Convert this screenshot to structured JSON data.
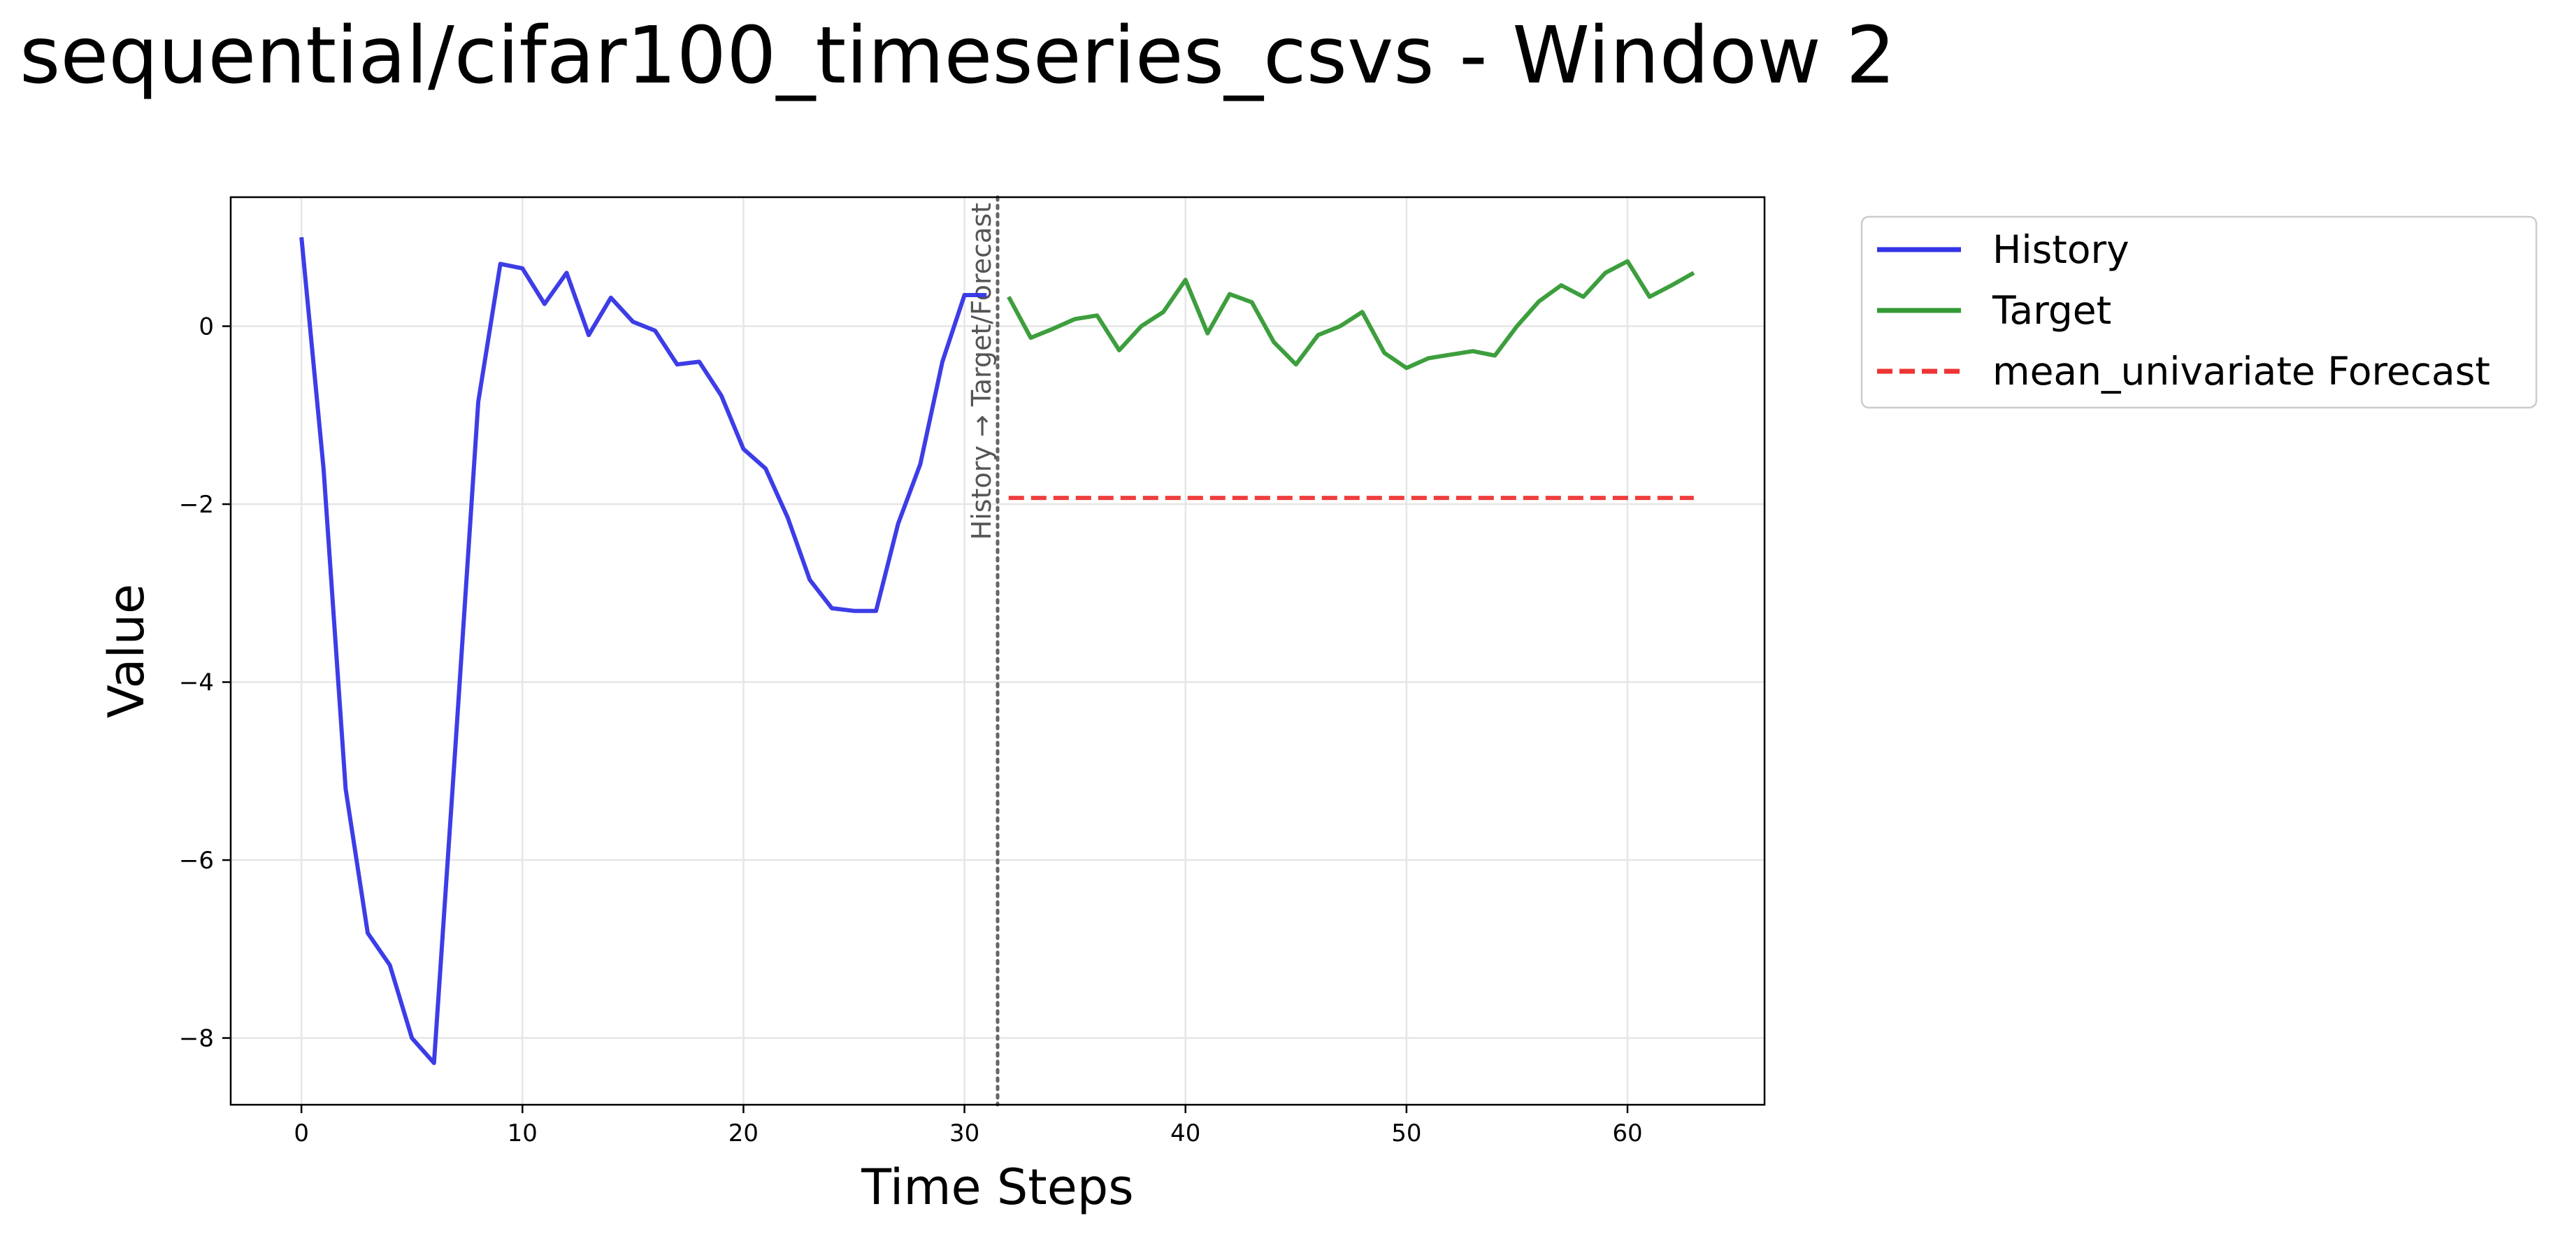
{
  "chart_data": {
    "type": "line",
    "title": "sequential/cifar100_timeseries_csvs - Window 2",
    "xlabel": "Time Steps",
    "ylabel": "Value",
    "xlim": [
      -3.2,
      66.2
    ],
    "ylim": [
      -8.75,
      1.45
    ],
    "xticks": [
      0,
      10,
      20,
      30,
      40,
      50,
      60
    ],
    "yticks": [
      -8,
      -6,
      -4,
      -2,
      0
    ],
    "ytick_labels": [
      "−8",
      "−6",
      "−4",
      "−2",
      "0"
    ],
    "grid": true,
    "legend_position": "outside-top-right",
    "divider": {
      "x": 31.5,
      "label": "History → Target/Forecast",
      "color": "#666666"
    },
    "series": [
      {
        "name": "History",
        "style": "solid",
        "color": "#3333e6",
        "x": [
          0,
          1,
          2,
          3,
          4,
          5,
          6,
          7,
          8,
          9,
          10,
          11,
          12,
          13,
          14,
          15,
          16,
          17,
          18,
          19,
          20,
          21,
          22,
          23,
          24,
          25,
          26,
          27,
          28,
          29,
          30,
          31
        ],
        "values": [
          1.0,
          -1.6,
          -5.2,
          -6.82,
          -7.18,
          -8.0,
          -8.28,
          -4.6,
          -0.85,
          0.7,
          0.65,
          0.25,
          0.6,
          -0.1,
          0.32,
          0.05,
          -0.05,
          -0.43,
          -0.4,
          -0.78,
          -1.38,
          -1.6,
          -2.15,
          -2.85,
          -3.17,
          -3.2,
          -3.2,
          -2.22,
          -1.55,
          -0.4,
          0.35,
          0.35
        ]
      },
      {
        "name": "Target",
        "style": "solid",
        "color": "#339933",
        "x": [
          32,
          33,
          34,
          35,
          36,
          37,
          38,
          39,
          40,
          41,
          42,
          43,
          44,
          45,
          46,
          47,
          48,
          49,
          50,
          51,
          52,
          53,
          54,
          55,
          56,
          57,
          58,
          59,
          60,
          61,
          62,
          63
        ],
        "values": [
          0.33,
          -0.13,
          -0.03,
          0.08,
          0.12,
          -0.27,
          0.0,
          0.16,
          0.52,
          -0.08,
          0.36,
          0.27,
          -0.18,
          -0.43,
          -0.1,
          0.0,
          0.16,
          -0.3,
          -0.47,
          -0.36,
          -0.32,
          -0.28,
          -0.33,
          0.0,
          0.28,
          0.46,
          0.33,
          0.6,
          0.73,
          0.33,
          0.46,
          0.6
        ]
      },
      {
        "name": "mean_univariate Forecast",
        "style": "dashed",
        "color": "#ee3333",
        "x": [
          32,
          33,
          34,
          35,
          36,
          37,
          38,
          39,
          40,
          41,
          42,
          43,
          44,
          45,
          46,
          47,
          48,
          49,
          50,
          51,
          52,
          53,
          54,
          55,
          56,
          57,
          58,
          59,
          60,
          61,
          62,
          63
        ],
        "values": [
          -1.93,
          -1.93,
          -1.93,
          -1.93,
          -1.93,
          -1.93,
          -1.93,
          -1.93,
          -1.93,
          -1.93,
          -1.93,
          -1.93,
          -1.93,
          -1.93,
          -1.93,
          -1.93,
          -1.93,
          -1.93,
          -1.93,
          -1.93,
          -1.93,
          -1.93,
          -1.93,
          -1.93,
          -1.93,
          -1.93,
          -1.93,
          -1.93,
          -1.93,
          -1.93,
          -1.93,
          -1.93
        ]
      }
    ]
  }
}
